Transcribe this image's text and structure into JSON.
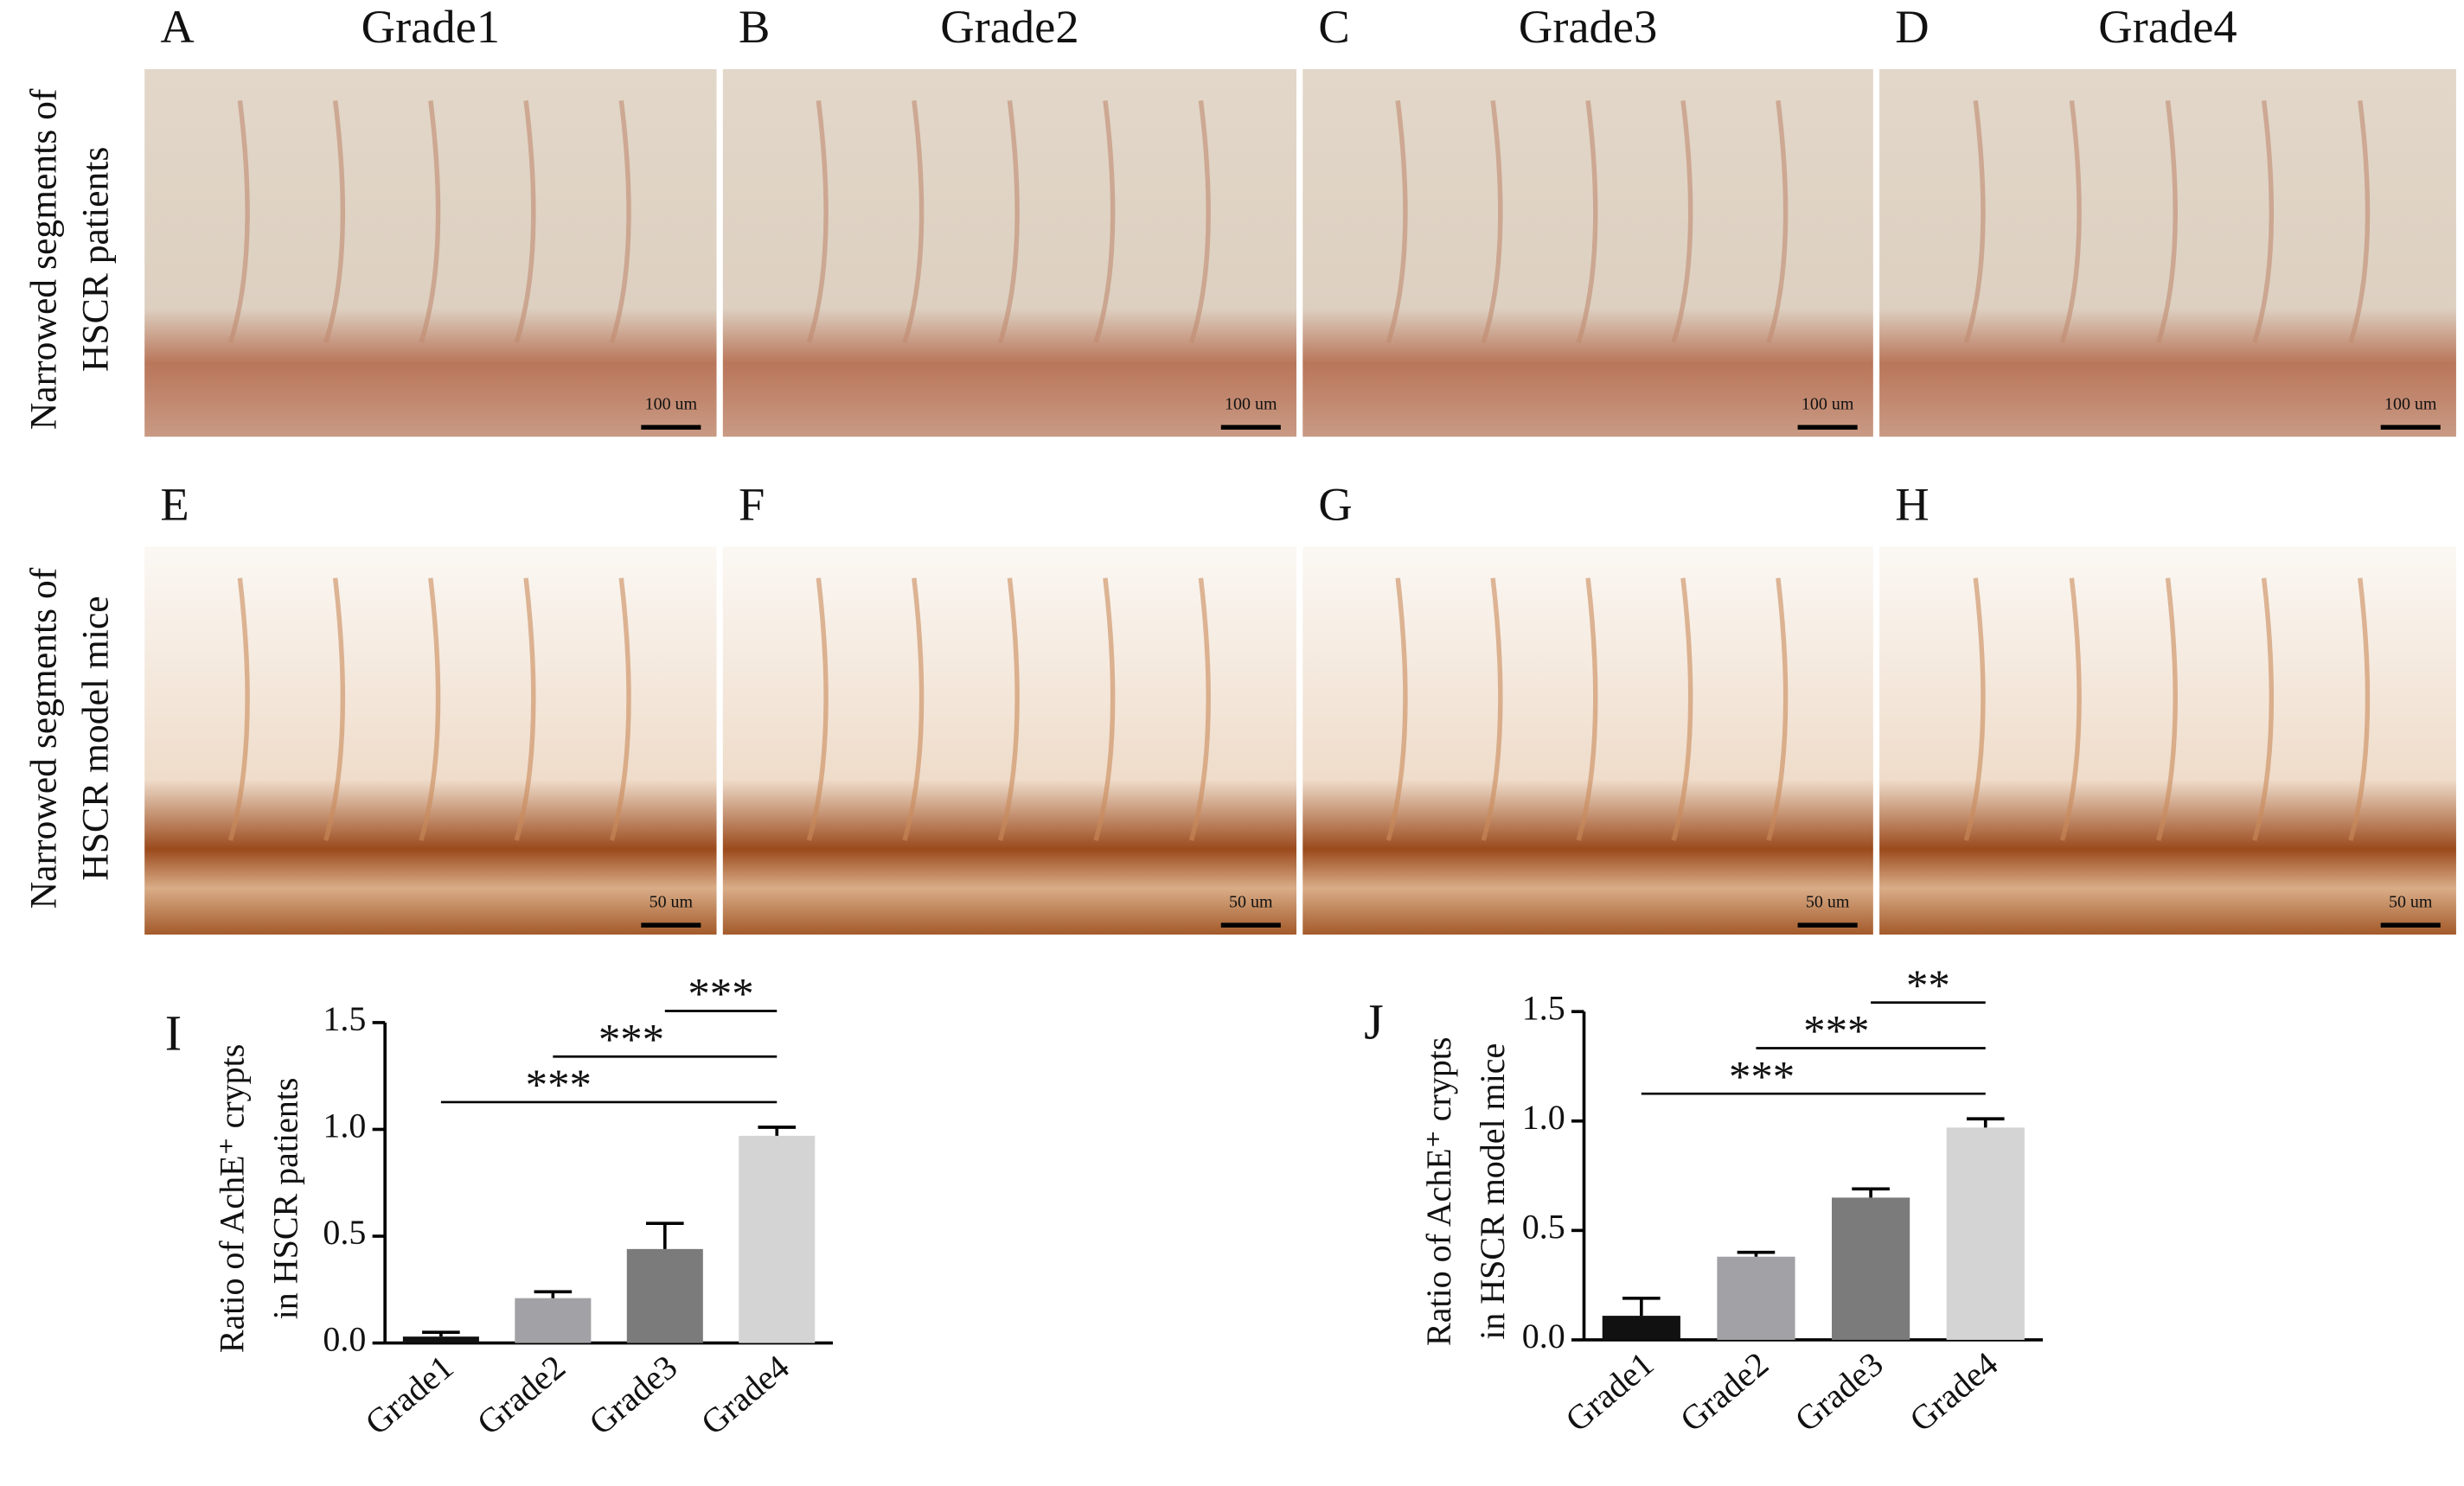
{
  "row_labels": [
    [
      "Narrowed segments of",
      "HSCR patients"
    ],
    [
      "Narrowed segments of",
      "HSCR model mice"
    ]
  ],
  "panels": [
    {
      "letter": "A",
      "title": "Grade1",
      "scale_bar": "100 um"
    },
    {
      "letter": "B",
      "title": "Grade2",
      "scale_bar": "100 um"
    },
    {
      "letter": "C",
      "title": "Grade3",
      "scale_bar": "100 um"
    },
    {
      "letter": "D",
      "title": "Grade4",
      "scale_bar": "100 um"
    },
    {
      "letter": "E",
      "scale_bar": "50 um"
    },
    {
      "letter": "F",
      "scale_bar": "50 um"
    },
    {
      "letter": "G",
      "scale_bar": "50 um"
    },
    {
      "letter": "H",
      "scale_bar": "50 um"
    }
  ],
  "chart_data": [
    {
      "type": "bar",
      "label": "I",
      "y_label": [
        "Ratio of AchE⁺ crypts",
        "in HSCR patients"
      ],
      "categories": [
        "Grade1",
        "Grade2",
        "Grade3",
        "Grade4"
      ],
      "values": [
        0.03,
        0.21,
        0.44,
        0.97
      ],
      "errors": [
        0.02,
        0.03,
        0.12,
        0.04
      ],
      "colors": [
        "#111111",
        "#a2a2a6",
        "#7b7b7b",
        "#d4d4d4"
      ],
      "ylim": [
        0,
        1.5
      ],
      "yticks": [
        {
          "value": 0,
          "label": "0.0"
        },
        0.5,
        {
          "value": 1,
          "label": "1.0"
        },
        1.5
      ],
      "significance": [
        "***",
        "***",
        "***"
      ]
    },
    {
      "type": "bar",
      "label": "J",
      "y_label": [
        "Ratio of AchE⁺ crypts",
        "in HSCR model mice"
      ],
      "categories": [
        "Grade1",
        "Grade2",
        "Grade3",
        "Grade4"
      ],
      "values": [
        0.11,
        0.38,
        0.65,
        0.97
      ],
      "errors": [
        0.08,
        0.02,
        0.04,
        0.04
      ],
      "colors": [
        "#111111",
        "#a2a2a6",
        "#7b7b7b",
        "#d4d4d4"
      ],
      "ylim": [
        0,
        1.5
      ],
      "yticks": [
        {
          "value": 0,
          "label": "0.0"
        },
        0.5,
        {
          "value": 1,
          "label": "1.0"
        },
        1.5
      ],
      "significance": [
        "***",
        "***",
        "**"
      ]
    }
  ]
}
